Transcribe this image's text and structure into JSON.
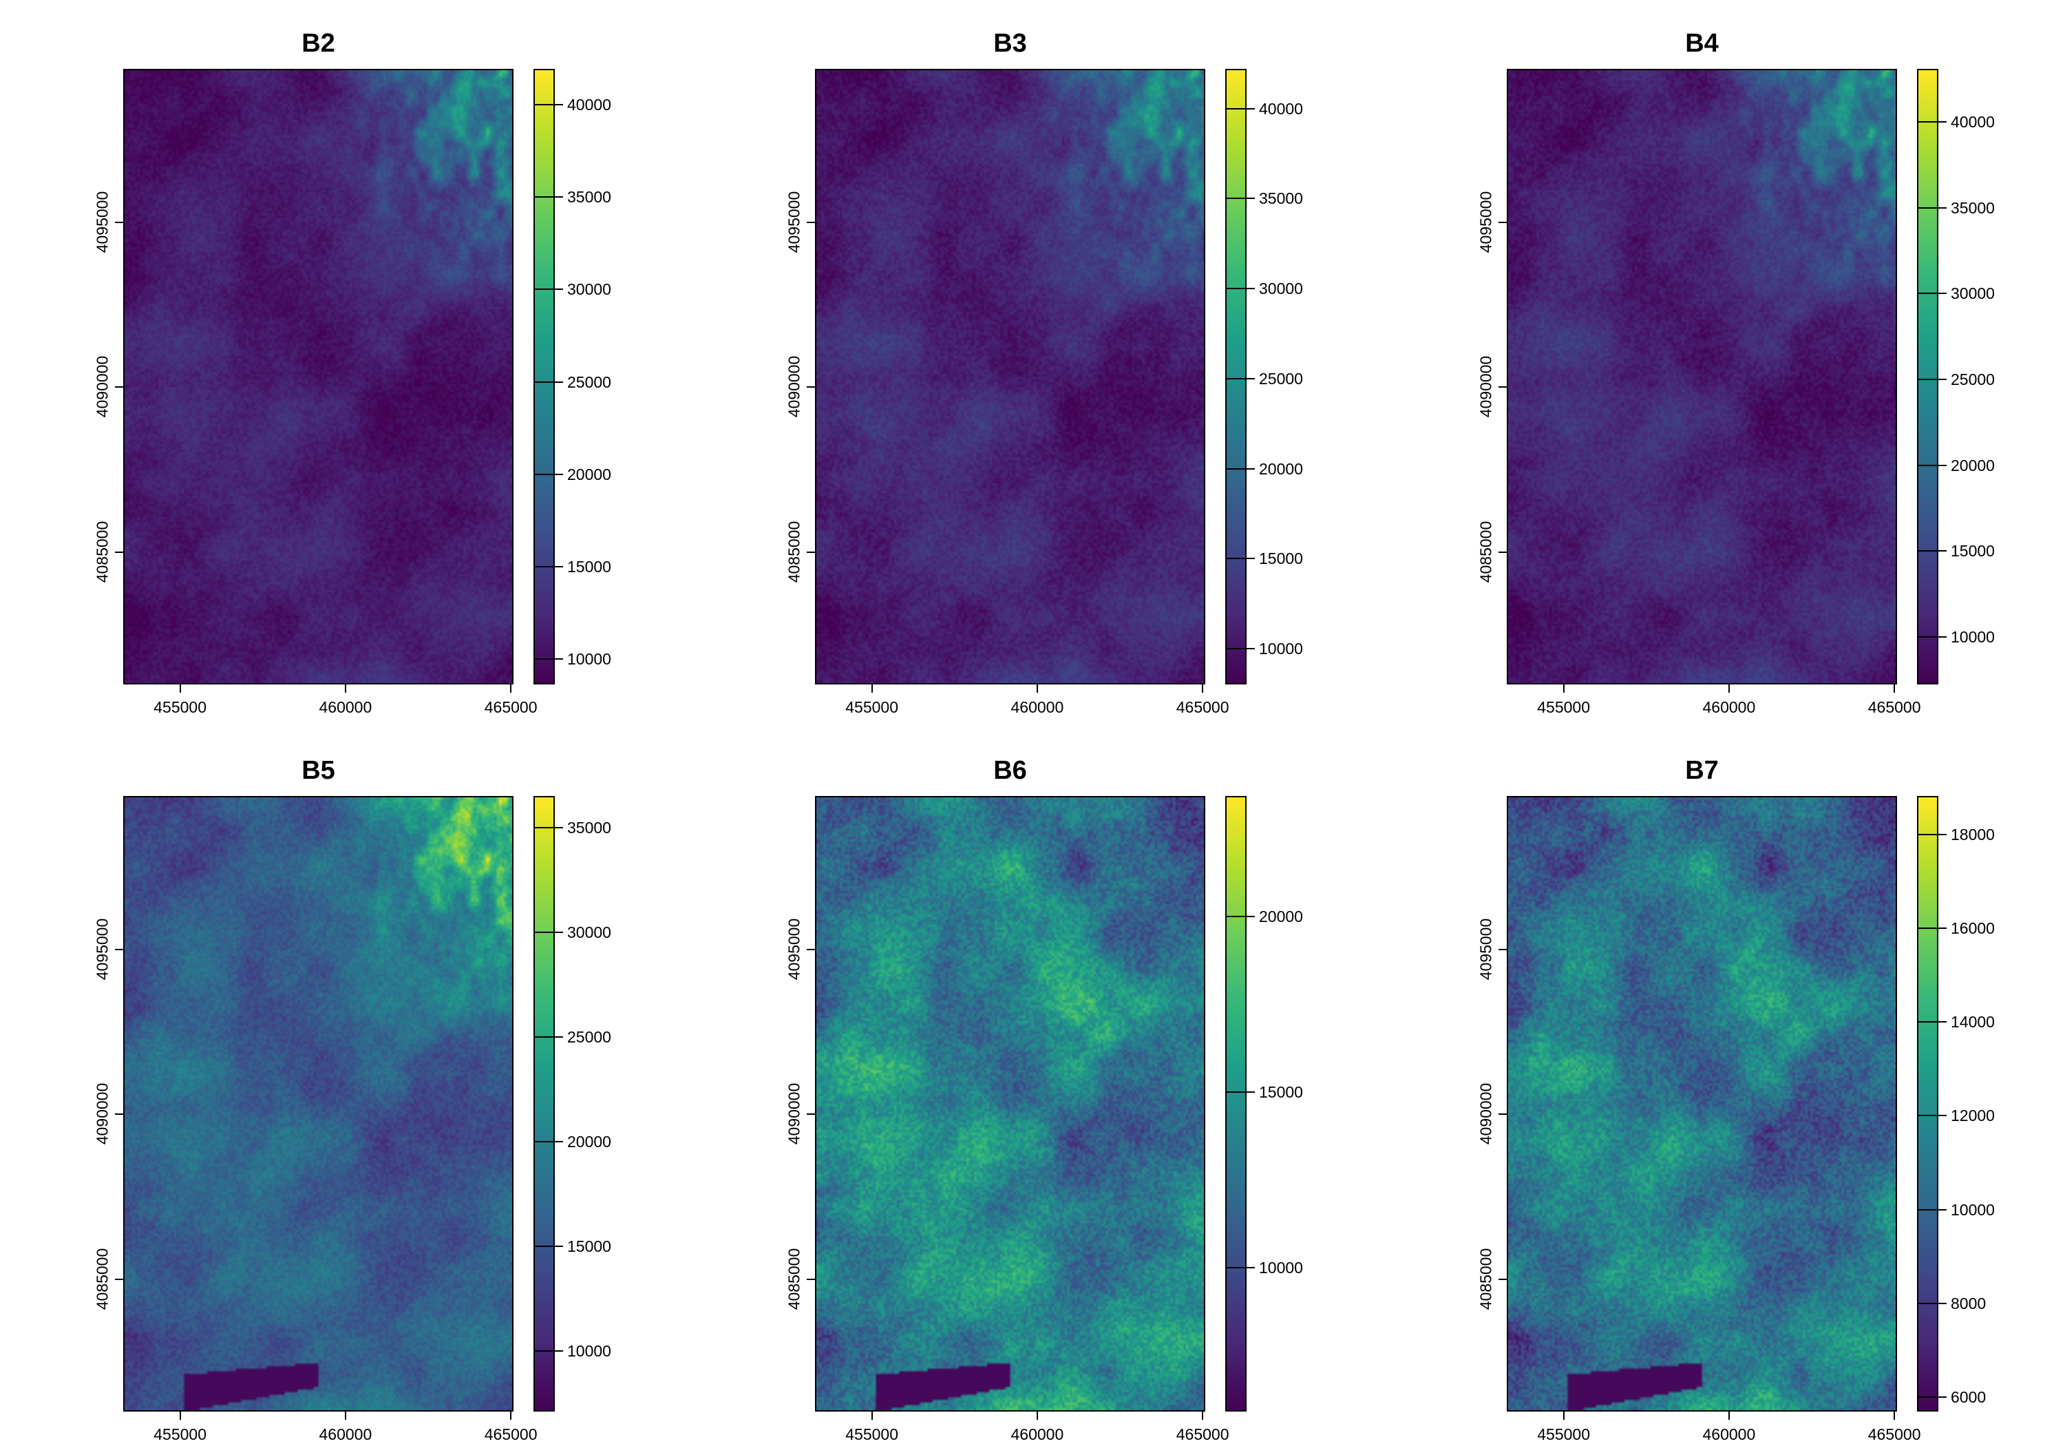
{
  "chart_data": [
    {
      "type": "heatmap",
      "title": "B2",
      "x_ticks": [
        455000,
        460000,
        465000
      ],
      "y_ticks": [
        4085000,
        4090000,
        4095000
      ],
      "xlim": [
        453280,
        465080
      ],
      "ylim": [
        4081000,
        4099640
      ],
      "colorbar": {
        "palette": "viridis",
        "range": [
          8640,
          41930
        ],
        "ticks": [
          10000,
          15000,
          20000,
          25000,
          30000,
          35000,
          40000
        ]
      }
    },
    {
      "type": "heatmap",
      "title": "B3",
      "x_ticks": [
        455000,
        460000,
        465000
      ],
      "y_ticks": [
        4085000,
        4090000,
        4095000
      ],
      "xlim": [
        453280,
        465080
      ],
      "ylim": [
        4081000,
        4099640
      ],
      "colorbar": {
        "palette": "viridis",
        "range": [
          8015,
          42200
        ],
        "ticks": [
          10000,
          15000,
          20000,
          25000,
          30000,
          35000,
          40000
        ]
      }
    },
    {
      "type": "heatmap",
      "title": "B4",
      "x_ticks": [
        455000,
        460000,
        465000
      ],
      "y_ticks": [
        4085000,
        4090000,
        4095000
      ],
      "xlim": [
        453280,
        465080
      ],
      "ylim": [
        4081000,
        4099640
      ],
      "colorbar": {
        "palette": "viridis",
        "range": [
          7225,
          43085
        ],
        "ticks": [
          10000,
          15000,
          20000,
          25000,
          30000,
          35000,
          40000
        ]
      }
    },
    {
      "type": "heatmap",
      "title": "B5",
      "x_ticks": [
        455000,
        460000,
        465000
      ],
      "y_ticks": [
        4085000,
        4090000,
        4095000
      ],
      "xlim": [
        453280,
        465080
      ],
      "ylim": [
        4081000,
        4099640
      ],
      "colorbar": {
        "palette": "viridis",
        "range": [
          7090,
          36520
        ],
        "ticks": [
          10000,
          15000,
          20000,
          25000,
          30000,
          35000
        ]
      }
    },
    {
      "type": "heatmap",
      "title": "B6",
      "x_ticks": [
        455000,
        460000,
        465000
      ],
      "y_ticks": [
        4085000,
        4090000,
        4095000
      ],
      "xlim": [
        453280,
        465080
      ],
      "ylim": [
        4081000,
        4099640
      ],
      "colorbar": {
        "palette": "viridis",
        "range": [
          5900,
          23420
        ],
        "ticks": [
          10000,
          15000,
          20000
        ]
      }
    },
    {
      "type": "heatmap",
      "title": "B7",
      "x_ticks": [
        455000,
        460000,
        465000
      ],
      "y_ticks": [
        4085000,
        4090000,
        4095000
      ],
      "xlim": [
        453280,
        465080
      ],
      "ylim": [
        4081000,
        4099640
      ],
      "colorbar": {
        "palette": "viridis",
        "range": [
          5690,
          18820
        ],
        "ticks": [
          6000,
          8000,
          10000,
          12000,
          14000,
          16000,
          18000
        ]
      }
    }
  ],
  "colors": {
    "viridis": [
      "#440154",
      "#482878",
      "#3e4989",
      "#31688e",
      "#26828e",
      "#1f9e89",
      "#35b779",
      "#6ece58",
      "#b5de2b",
      "#fde725"
    ]
  }
}
